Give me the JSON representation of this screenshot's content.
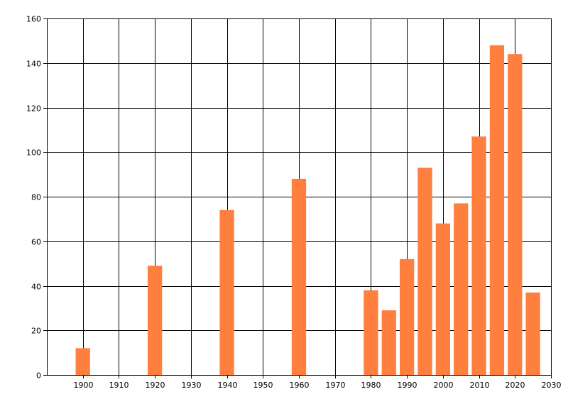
{
  "chart_data": {
    "type": "bar",
    "title": "",
    "xlabel": "",
    "ylabel": "",
    "xlim": [
      1890,
      2030
    ],
    "ylim": [
      0,
      160
    ],
    "grid": true,
    "legend": "none",
    "x_ticks": [
      1900,
      1910,
      1920,
      1930,
      1940,
      1950,
      1960,
      1970,
      1980,
      1990,
      2000,
      2010,
      2020,
      2030
    ],
    "y_ticks": [
      0,
      20,
      40,
      60,
      80,
      100,
      120,
      140,
      160
    ],
    "bar_width_years": 4,
    "series": [
      {
        "color": "#ff7f3f",
        "x": [
          1900,
          1920,
          1940,
          1960,
          1980,
          1985,
          1990,
          1995,
          2000,
          2005,
          2010,
          2015,
          2020,
          2025
        ],
        "values": [
          12,
          49,
          74,
          88,
          38,
          29,
          52,
          93,
          68,
          77,
          107,
          148,
          144,
          37
        ]
      }
    ]
  }
}
